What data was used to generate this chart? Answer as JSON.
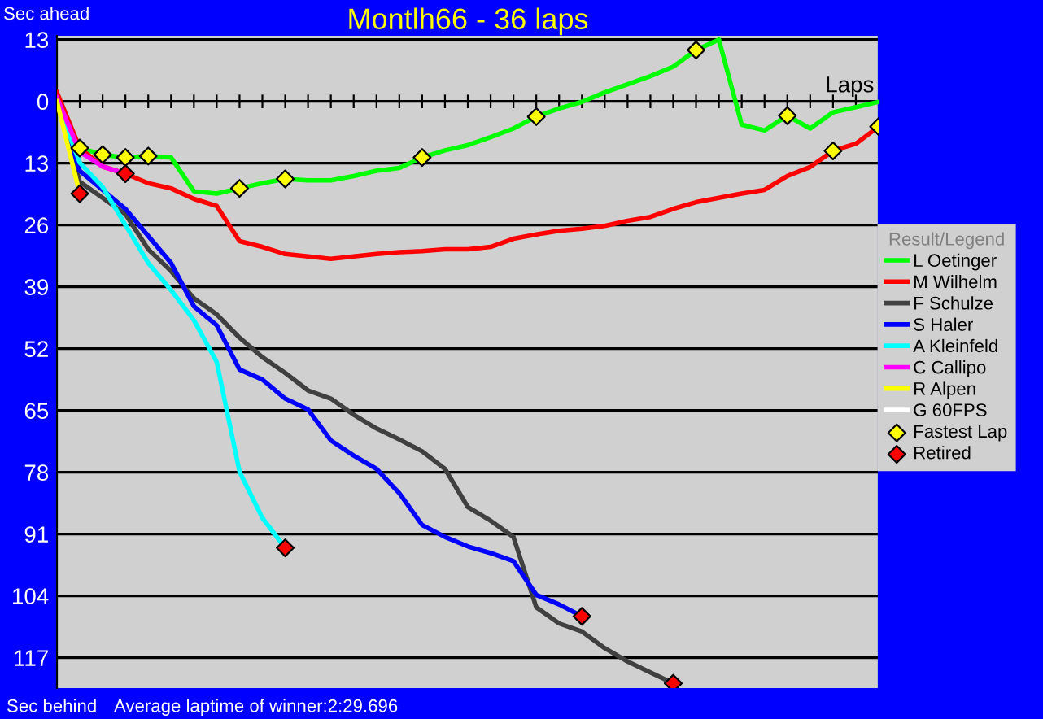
{
  "chart_data": {
    "type": "line",
    "title": "Montlh66 - 36 laps",
    "xlabel": "Laps",
    "legend_title": "Result/Legend",
    "annotations": [
      "Sec ahead",
      "Sec behind",
      "Average laptime of winner:2:29.696"
    ],
    "categories": [
      null,
      null,
      null,
      null,
      null,
      null,
      null,
      null,
      null,
      null,
      null,
      null,
      null,
      null,
      null,
      null,
      null,
      null,
      null,
      null,
      null,
      null,
      null,
      null,
      null,
      null,
      null,
      null,
      null,
      null,
      null,
      null,
      null,
      null,
      null,
      null,
      null
    ],
    "ylim": [
      123.4,
      -13.8
    ],
    "yticks": [
      {
        "value": -13,
        "label": "13"
      },
      {
        "value": 0,
        "label": "0"
      },
      {
        "value": 13,
        "label": "13"
      },
      {
        "value": 26,
        "label": "26"
      },
      {
        "value": 39,
        "label": "39"
      },
      {
        "value": 52,
        "label": "52"
      },
      {
        "value": 65,
        "label": "65"
      },
      {
        "value": 78,
        "label": "78"
      },
      {
        "value": 91,
        "label": "91"
      },
      {
        "value": 104,
        "label": "104"
      },
      {
        "value": 117,
        "label": "117"
      }
    ],
    "grid": "y",
    "legend": "right",
    "tick_labels": "y",
    "marker": "none",
    "line_style": "solid",
    "series": [
      {
        "name": "L Oetinger",
        "color": "#00ff00",
        "values": [
          0,
          9.8,
          11.2,
          11.8,
          11.5,
          11.8,
          18.9,
          19.4,
          18.3,
          17.2,
          16.3,
          16.6,
          16.6,
          15.7,
          14.6,
          14.0,
          11.8,
          10.3,
          9.2,
          7.5,
          5.7,
          3.2,
          1.5,
          0.1,
          -1.9,
          -3.6,
          -5.3,
          -7.3,
          -10.8,
          -13.0,
          4.9,
          6.1,
          3.0,
          5.7,
          2.3,
          1.2,
          0.1
        ]
      },
      {
        "name": "M Wilhelm",
        "color": "#ff0000",
        "values": [
          -1.9,
          9.8,
          13.7,
          15.2,
          17.2,
          18.3,
          20.5,
          22.0,
          29.4,
          30.6,
          32.1,
          32.6,
          33.1,
          32.6,
          32.1,
          31.7,
          31.5,
          31.1,
          31.1,
          30.6,
          28.9,
          28.0,
          27.2,
          26.8,
          26.2,
          25.1,
          24.3,
          22.6,
          21.2,
          20.3,
          19.4,
          18.6,
          15.7,
          13.8,
          10.4,
          8.9,
          5.3
        ]
      },
      {
        "name": "F Schulze",
        "color": "#404040",
        "values": [
          0,
          16.9,
          20.3,
          23.7,
          31.1,
          35.7,
          41.4,
          44.8,
          49.7,
          53.8,
          57.1,
          60.8,
          62.5,
          65.9,
          68.8,
          71.1,
          73.6,
          77.3,
          85.3,
          88.2,
          91.6,
          106.4,
          109.8,
          111.5,
          115.0,
          117.8,
          120.1,
          122.4,
          null,
          null,
          null,
          null,
          null,
          null,
          null,
          null,
          null
        ]
      },
      {
        "name": "S Haler",
        "color": "#0000ff",
        "values": [
          0,
          14.6,
          18.6,
          22.6,
          28.3,
          34.0,
          43.1,
          47.1,
          56.4,
          58.5,
          62.5,
          64.8,
          71.3,
          74.5,
          77.3,
          82.4,
          89.1,
          91.6,
          93.6,
          95.0,
          96.7,
          103.8,
          105.8,
          108.3,
          null,
          null,
          null,
          null,
          null,
          null,
          null,
          null,
          null,
          null,
          null,
          null,
          null
        ]
      },
      {
        "name": "A Kleinfeld",
        "color": "#00ffff",
        "values": [
          0,
          12.9,
          18.0,
          26.0,
          34.0,
          39.7,
          46.0,
          54.8,
          77.9,
          87.6,
          93.9,
          null,
          null,
          null,
          null,
          null,
          null,
          null,
          null,
          null,
          null,
          null,
          null,
          null,
          null,
          null,
          null,
          null,
          null,
          null,
          null,
          null,
          null,
          null,
          null,
          null,
          null
        ]
      },
      {
        "name": "C Callipo",
        "color": "#ff00ff",
        "values": [
          -0.8,
          10.6,
          13.7,
          15.2,
          null,
          null,
          null,
          null,
          null,
          null,
          null,
          null,
          null,
          null,
          null,
          null,
          null,
          null,
          null,
          null,
          null,
          null,
          null,
          null,
          null,
          null,
          null,
          null,
          null,
          null,
          null,
          null,
          null,
          null,
          null,
          null,
          null
        ]
      },
      {
        "name": "R Alpen",
        "color": "#ffff00",
        "values": [
          0,
          19.4,
          null,
          null,
          null,
          null,
          null,
          null,
          null,
          null,
          null,
          null,
          null,
          null,
          null,
          null,
          null,
          null,
          null,
          null,
          null,
          null,
          null,
          null,
          null,
          null,
          null,
          null,
          null,
          null,
          null,
          null,
          null,
          null,
          null,
          null,
          null
        ]
      },
      {
        "name": "G 60FPS",
        "color": "#ffffff",
        "values": [
          null,
          null,
          null,
          null,
          null,
          null,
          null,
          null,
          null,
          null,
          null,
          null,
          null,
          null,
          null,
          null,
          null,
          null,
          null,
          null,
          null,
          null,
          null,
          null,
          null,
          null,
          null,
          null,
          null,
          null,
          null,
          null,
          null,
          null,
          null,
          null,
          null
        ]
      },
      {
        "name": "Fastest Lap",
        "type": "scatter",
        "marker": "diamond",
        "color": "#ffff00",
        "values": [
          null,
          9.8,
          11.2,
          11.8,
          11.5,
          null,
          null,
          null,
          18.3,
          null,
          16.3,
          null,
          null,
          null,
          null,
          null,
          11.8,
          null,
          null,
          null,
          null,
          3.2,
          null,
          null,
          null,
          null,
          null,
          null,
          -10.8,
          null,
          null,
          null,
          3.0,
          null,
          10.4,
          null,
          5.3
        ]
      },
      {
        "name": "Retired",
        "type": "scatter",
        "marker": "diamond",
        "color": "#ff0000",
        "values": [
          null,
          19.4,
          null,
          15.2,
          null,
          null,
          null,
          null,
          null,
          null,
          93.9,
          null,
          null,
          null,
          null,
          null,
          null,
          null,
          null,
          null,
          null,
          null,
          null,
          108.3,
          null,
          null,
          null,
          122.4,
          null,
          null,
          null,
          null,
          null,
          null,
          null,
          null,
          null
        ]
      }
    ]
  }
}
